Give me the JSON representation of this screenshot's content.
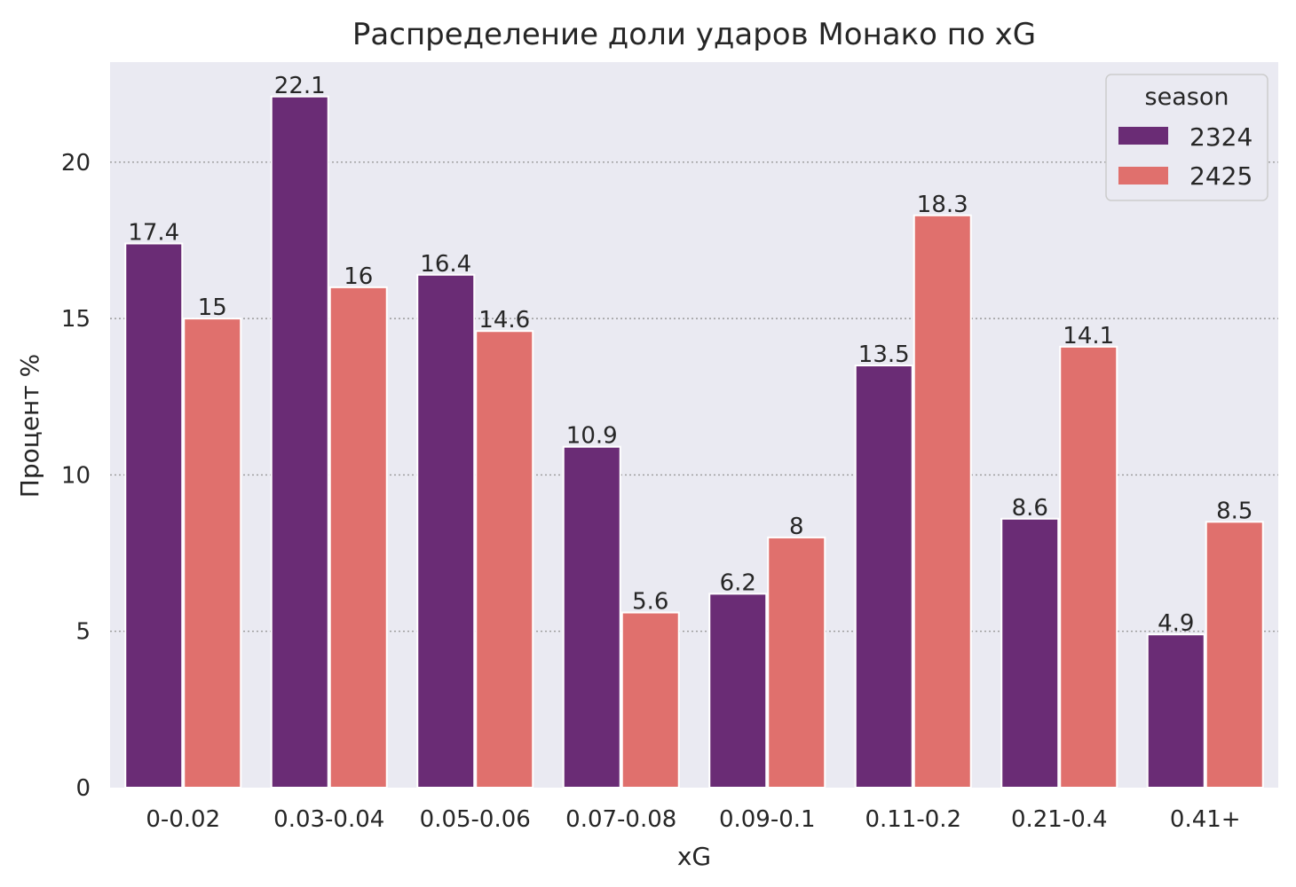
{
  "chart_data": {
    "type": "bar",
    "title": "Распределение доли ударов Монако по xG",
    "xlabel": "xG",
    "ylabel": "Процент %",
    "categories": [
      "0-0.02",
      "0.03-0.04",
      "0.05-0.06",
      "0.07-0.08",
      "0.09-0.1",
      "0.11-0.2",
      "0.21-0.4",
      "0.41+"
    ],
    "series": [
      {
        "name": "2324",
        "color": "#6a2c75",
        "values": [
          17.4,
          22.1,
          16.4,
          10.9,
          6.2,
          13.5,
          8.6,
          4.9
        ]
      },
      {
        "name": "2425",
        "color": "#e0706d",
        "values": [
          15,
          16,
          14.6,
          5.6,
          8,
          18.3,
          14.1,
          8.5
        ]
      }
    ],
    "data_labels": [
      [
        "17.4",
        "22.1",
        "16.4",
        "10.9",
        "6.2",
        "13.5",
        "8.6",
        "4.9"
      ],
      [
        "15",
        "16",
        "14.6",
        "5.6",
        "8",
        "18.3",
        "14.1",
        "8.5"
      ]
    ],
    "ylim": [
      0,
      23.2
    ],
    "yticks": [
      0,
      5,
      10,
      15,
      20
    ],
    "ytick_labels": [
      "0",
      "5",
      "10",
      "15",
      "20"
    ],
    "grid": "horizontal dotted",
    "legend": {
      "title": "season",
      "placement": "top-right"
    },
    "background_color": "#eaeaf2",
    "grid_color": "#9a9a9a"
  }
}
